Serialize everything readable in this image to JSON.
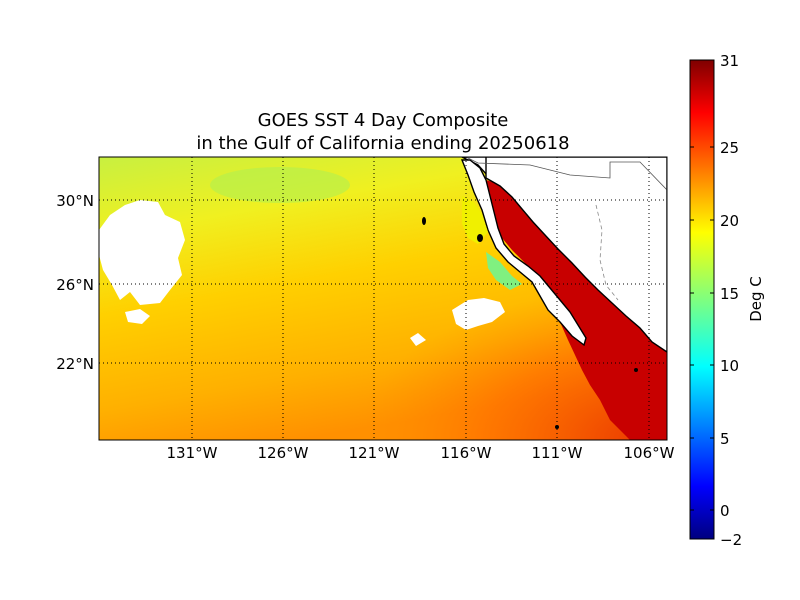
{
  "title_line1": "GOES SST 4 Day Composite",
  "title_line2": "in the Gulf of California ending 20250618",
  "map": {
    "lat_labels": [
      "30°N",
      "26°N",
      "22°N"
    ],
    "lon_labels": [
      "131°W",
      "126°W",
      "121°W",
      "116°W",
      "111°W",
      "106°W"
    ],
    "gridlines": "dotted"
  },
  "colorbar": {
    "label": "Deg C",
    "ticks": [
      "31",
      "25",
      "20",
      "15",
      "10",
      "5",
      "0",
      "−2"
    ],
    "range": [
      -2,
      31
    ],
    "colormap": "jet"
  },
  "colors": {
    "land": "#ffffff",
    "coast": "#000000",
    "gulf_warm": "#c00000",
    "ocean_mid": "#ffd000",
    "ocean_north": "#b8f040"
  }
}
